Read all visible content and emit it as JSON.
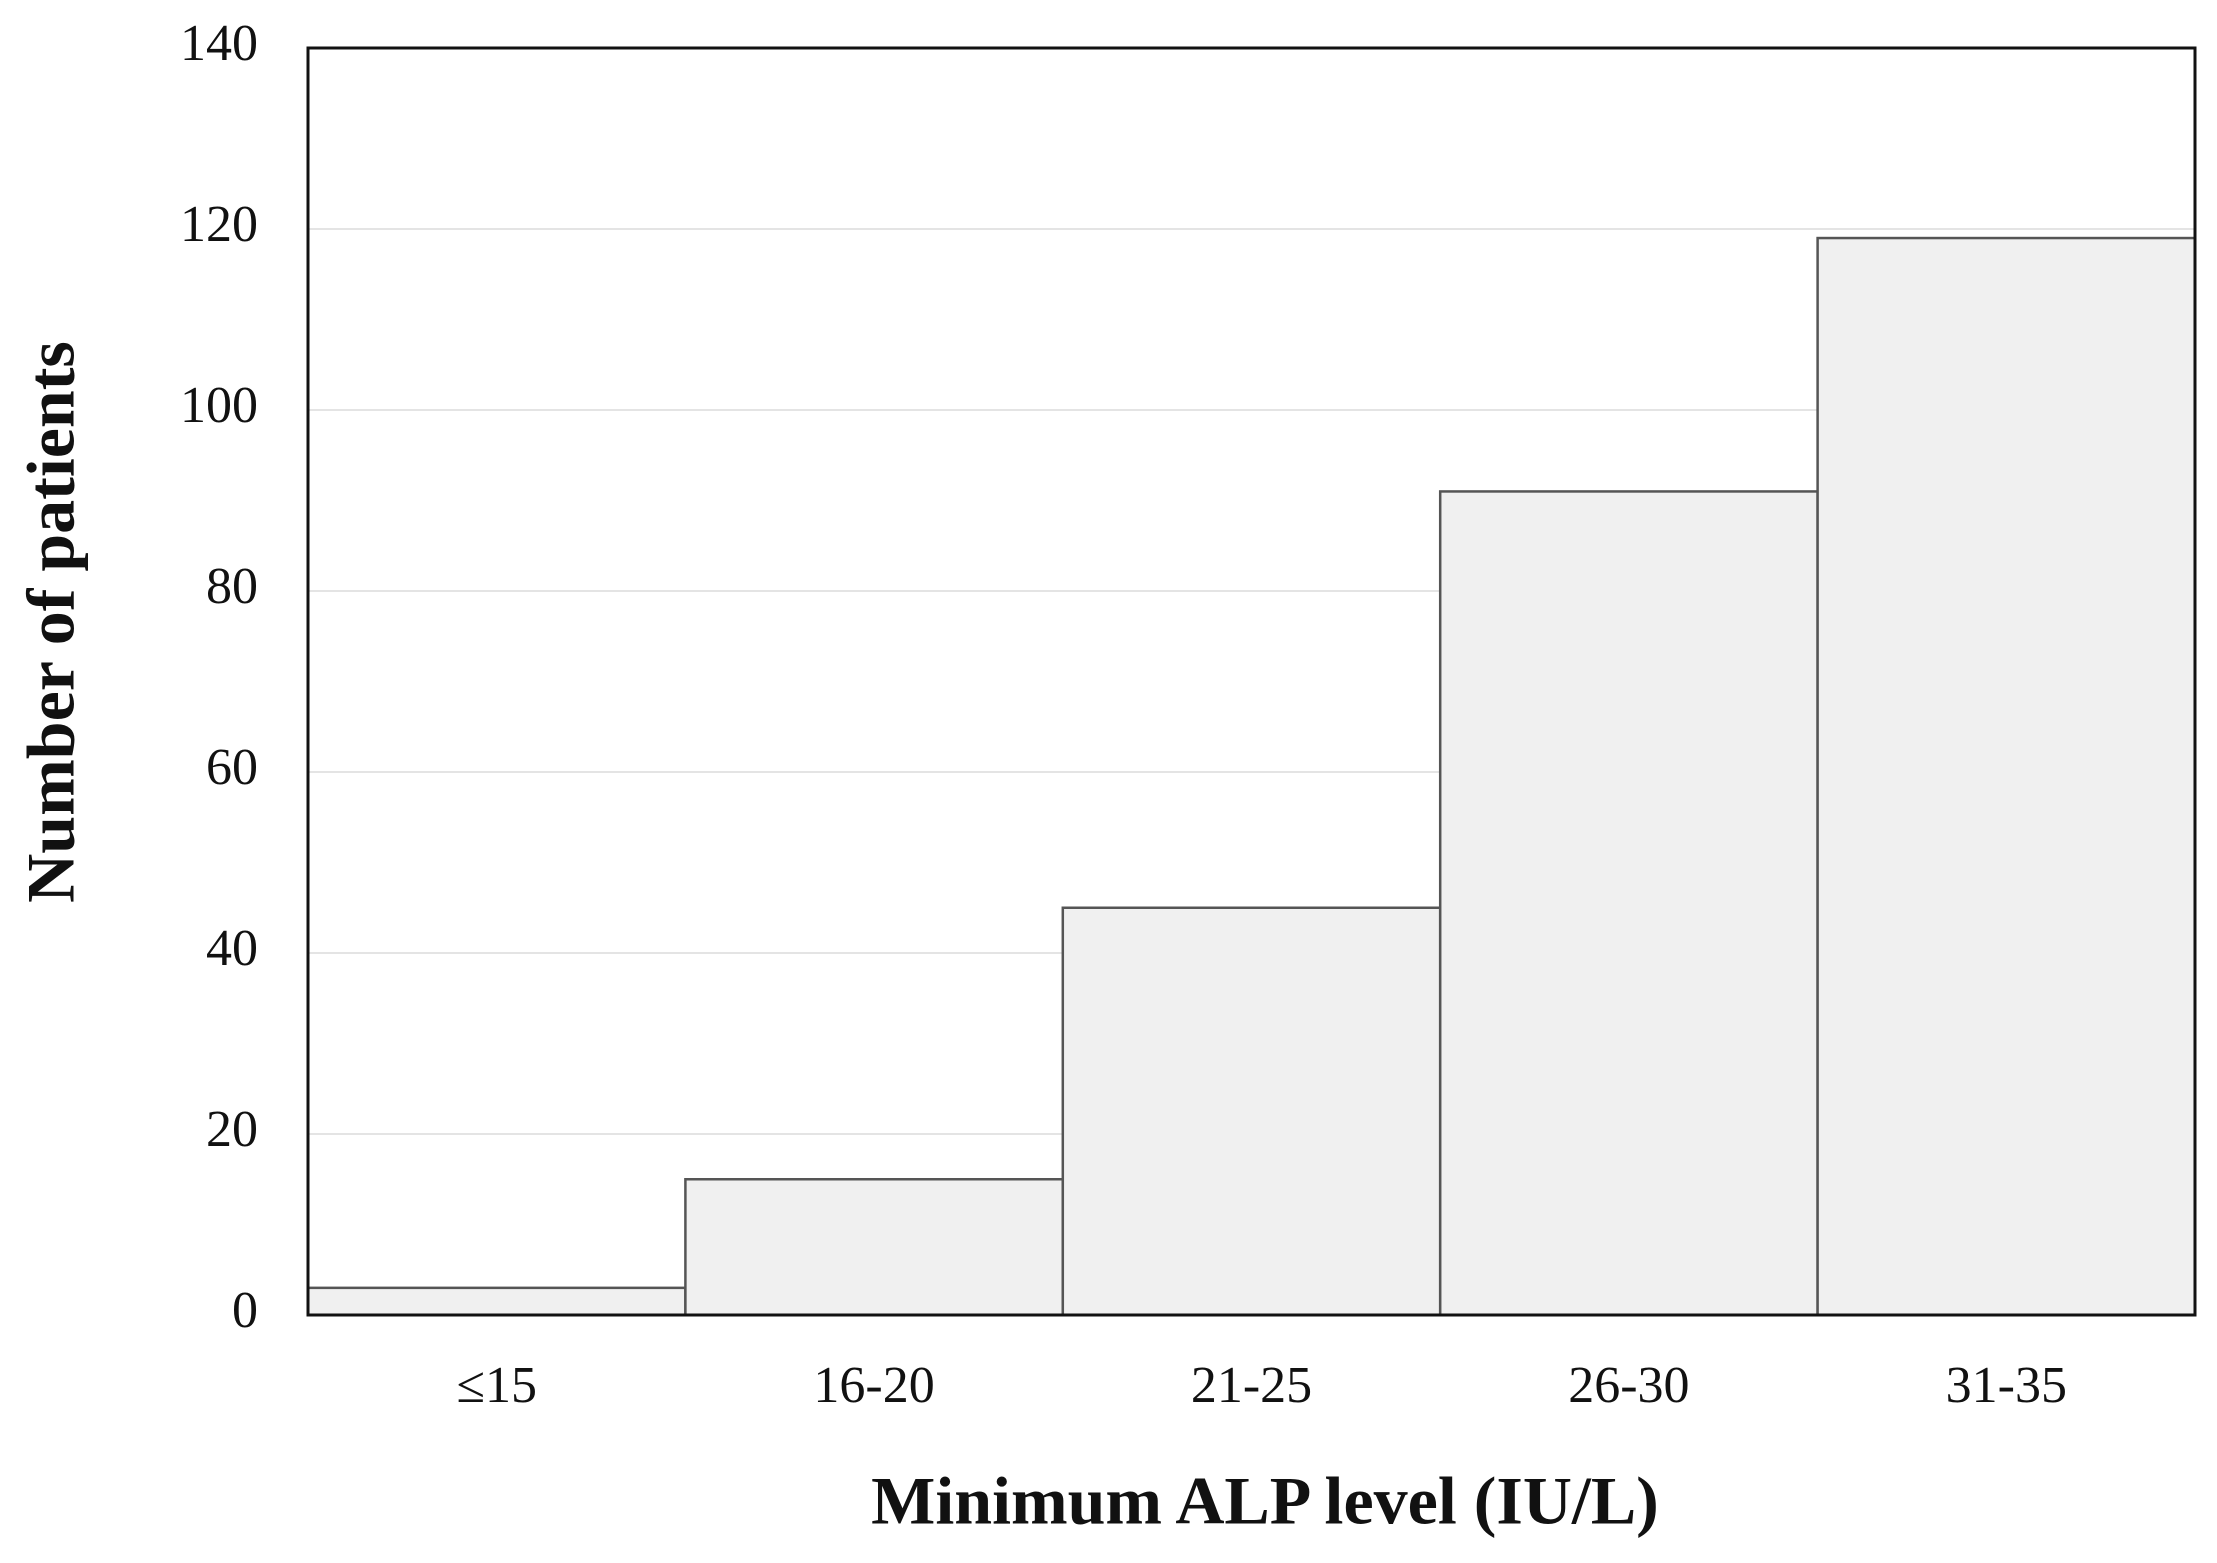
{
  "chart_data": {
    "type": "bar",
    "categories": [
      "≤15",
      "16-20",
      "21-25",
      "26-30",
      "31-35"
    ],
    "values": [
      3,
      15,
      45,
      91,
      119
    ],
    "color": "#f0f0f0",
    "x_label": "Minimum ALP level (IU/L)",
    "y_label": "Number of patients",
    "ylim": [
      0,
      140
    ],
    "yticks": [
      0,
      20,
      40,
      60,
      80,
      100,
      120,
      140
    ],
    "grid": true
  }
}
